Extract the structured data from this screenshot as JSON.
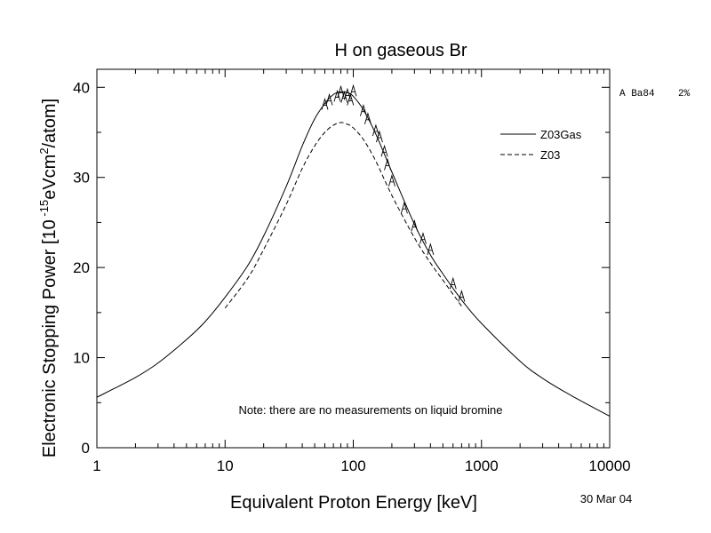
{
  "chart_data": {
    "type": "line",
    "title": "H on gaseous Br",
    "xlabel": "Equivalent Proton Energy [keV]",
    "ylabel_parts": {
      "pre": "Electronic Stopping Power [10",
      "sup1": " -15",
      "mid": "eVcm",
      "sup2": "2",
      "post": "/atom]"
    },
    "x_scale": "log",
    "xlim": [
      1,
      10000
    ],
    "ylim": [
      0,
      42
    ],
    "x_ticks": [
      1,
      10,
      100,
      1000,
      10000
    ],
    "x_tick_labels": [
      "1",
      "10",
      "100",
      "1000",
      "10000"
    ],
    "y_ticks": [
      0,
      10,
      20,
      30,
      40
    ],
    "y_tick_labels": [
      "0",
      "10",
      "20",
      "30",
      "40"
    ],
    "grid": false,
    "legend_position": "top-right",
    "series": [
      {
        "name": "Z03Gas",
        "style": "solid",
        "x": [
          1,
          2,
          3,
          5,
          7,
          10,
          15,
          20,
          30,
          40,
          50,
          60,
          70,
          80,
          90,
          100,
          120,
          150,
          200,
          300,
          400,
          500,
          700,
          1000,
          2000,
          3000,
          5000,
          10000
        ],
        "y": [
          5.6,
          7.8,
          9.4,
          12.0,
          14.0,
          16.7,
          20.2,
          23.5,
          29.0,
          33.5,
          36.5,
          38.2,
          39.2,
          39.5,
          39.4,
          39.0,
          37.5,
          34.8,
          30.6,
          24.8,
          21.4,
          19.3,
          16.4,
          13.8,
          9.6,
          7.7,
          5.8,
          3.5
        ]
      },
      {
        "name": "Z03",
        "style": "dashed",
        "x": [
          10,
          15,
          20,
          30,
          40,
          50,
          60,
          70,
          80,
          90,
          100,
          120,
          150,
          200,
          300,
          400,
          500,
          700
        ],
        "y": [
          15.5,
          18.8,
          22.0,
          27.0,
          31.0,
          33.5,
          35.0,
          35.8,
          36.1,
          35.9,
          35.5,
          34.2,
          31.8,
          28.0,
          23.3,
          20.5,
          18.6,
          15.7
        ]
      },
      {
        "name": "Ba84",
        "style": "markers",
        "marker": "A",
        "x": [
          60,
          65,
          75,
          80,
          85,
          90,
          95,
          100,
          120,
          130,
          150,
          160,
          175,
          185,
          200,
          250,
          300,
          350,
          400,
          600,
          700
        ],
        "y": [
          38.1,
          38.6,
          39.0,
          39.5,
          38.9,
          39.2,
          38.6,
          39.6,
          37.4,
          36.5,
          35.2,
          34.5,
          32.9,
          31.4,
          29.6,
          26.6,
          24.6,
          23.2,
          22.0,
          18.2,
          16.8
        ]
      }
    ],
    "data_ref_label": "A Ba84    2%",
    "note": "Note: there are no measurements on liquid bromine",
    "date": "30 Mar 04"
  }
}
